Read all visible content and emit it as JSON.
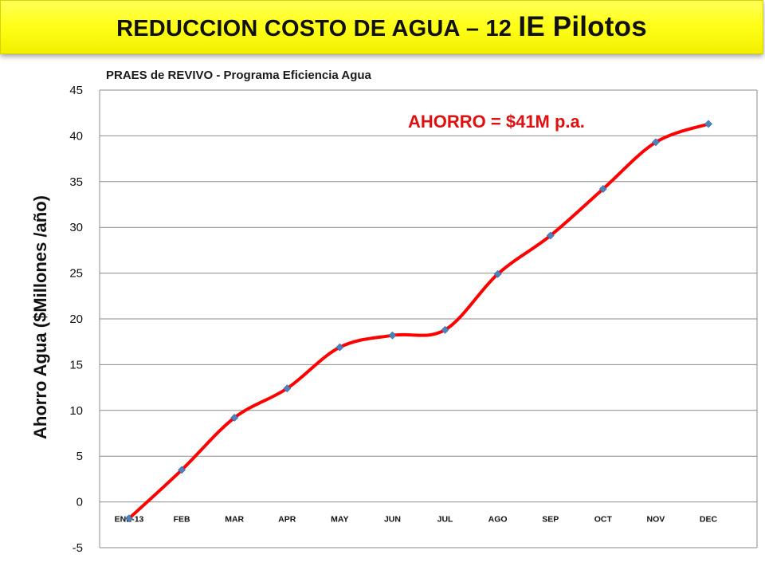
{
  "banner": {
    "title_prefix": "REDUCCION COSTO DE AGUA – 12 ",
    "title_suffix": "IE Pilotos"
  },
  "chart_data": {
    "type": "line",
    "title": "PRAES de REVIVO - Programa Eficiencia Agua",
    "xlabel": "",
    "ylabel": "Ahorro Agua ($Millones /año)",
    "categories": [
      "ENE-13",
      "FEB",
      "MAR",
      "APR",
      "MAY",
      "JUN",
      "JUL",
      "AGO",
      "SEP",
      "OCT",
      "NOV",
      "DEC"
    ],
    "series": [
      {
        "values": [
          -1.8,
          3.5,
          9.2,
          12.4,
          16.9,
          18.2,
          18.8,
          24.9,
          29.1,
          34.2,
          39.3,
          41.3
        ],
        "color": "#ff0000",
        "marker_color": "#4f81bd"
      }
    ],
    "ylim": [
      -5,
      45
    ],
    "yticks": [
      45,
      40,
      35,
      30,
      25,
      20,
      15,
      10,
      5,
      0,
      -5
    ],
    "grid": true,
    "smooth": true,
    "annotation": "AHORRO = $41M p.a."
  }
}
